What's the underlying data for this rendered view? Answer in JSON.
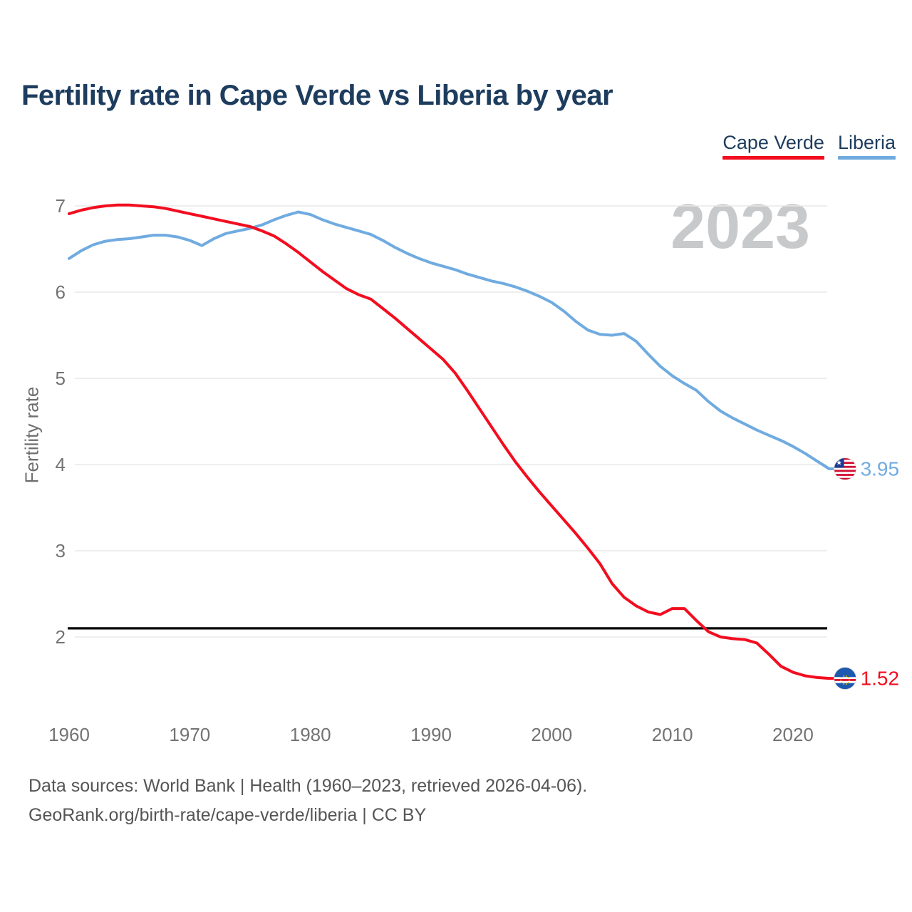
{
  "title": "Fertility rate in Cape Verde vs Liberia by year",
  "legend": {
    "items": [
      {
        "label": "Cape Verde",
        "color": "#f20d1f"
      },
      {
        "label": "Liberia",
        "color": "#70abe0"
      }
    ]
  },
  "watermark": "2023",
  "y_axis": {
    "label": "Fertility rate",
    "ticks": [
      7,
      6,
      5,
      4,
      3,
      2
    ]
  },
  "x_axis": {
    "ticks": [
      1960,
      1970,
      1980,
      1990,
      2000,
      2010,
      2020
    ]
  },
  "footer": {
    "line1": "Data sources: World Bank | Health (1960–2023, retrieved 2026-04-06).",
    "line2": "GeoRank.org/birth-rate/cape-verde/liberia | CC BY"
  },
  "chart_data": {
    "type": "line",
    "title": "Fertility rate in Cape Verde vs Liberia by year",
    "ylabel": "Fertility rate",
    "ylim": [
      2,
      7
    ],
    "xlim": [
      1960,
      2023
    ],
    "grid": "horizontal",
    "legend_position": "top-right",
    "x": [
      1960,
      1961,
      1962,
      1963,
      1964,
      1965,
      1966,
      1967,
      1968,
      1969,
      1970,
      1971,
      1972,
      1973,
      1974,
      1975,
      1976,
      1977,
      1978,
      1979,
      1980,
      1981,
      1982,
      1983,
      1984,
      1985,
      1986,
      1987,
      1988,
      1989,
      1990,
      1991,
      1992,
      1993,
      1994,
      1995,
      1996,
      1997,
      1998,
      1999,
      2000,
      2001,
      2002,
      2003,
      2004,
      2005,
      2006,
      2007,
      2008,
      2009,
      2010,
      2011,
      2012,
      2013,
      2014,
      2015,
      2016,
      2017,
      2018,
      2019,
      2020,
      2021,
      2022,
      2023
    ],
    "series": [
      {
        "name": "Cape Verde",
        "color": "#f20d1f",
        "end_label": "1.52",
        "flag": "cape-verde",
        "values": [
          6.91,
          6.95,
          6.98,
          7.0,
          7.01,
          7.01,
          7.0,
          6.99,
          6.97,
          6.94,
          6.91,
          6.88,
          6.85,
          6.82,
          6.79,
          6.76,
          6.71,
          6.65,
          6.56,
          6.46,
          6.35,
          6.24,
          6.14,
          6.04,
          5.97,
          5.92,
          5.81,
          5.7,
          5.58,
          5.46,
          5.34,
          5.22,
          5.06,
          4.86,
          4.65,
          4.44,
          4.23,
          4.03,
          3.85,
          3.68,
          3.52,
          3.36,
          3.2,
          3.03,
          2.85,
          2.62,
          2.46,
          2.36,
          2.29,
          2.26,
          2.33,
          2.33,
          2.19,
          2.06,
          2.0,
          1.98,
          1.97,
          1.93,
          1.8,
          1.66,
          1.59,
          1.55,
          1.53,
          1.52
        ]
      },
      {
        "name": "Liberia",
        "color": "#70abe0",
        "end_label": "3.95",
        "flag": "liberia",
        "values": [
          6.39,
          6.48,
          6.55,
          6.59,
          6.61,
          6.62,
          6.64,
          6.66,
          6.66,
          6.64,
          6.6,
          6.54,
          6.62,
          6.68,
          6.71,
          6.74,
          6.78,
          6.84,
          6.89,
          6.93,
          6.9,
          6.84,
          6.79,
          6.75,
          6.71,
          6.67,
          6.6,
          6.52,
          6.45,
          6.39,
          6.34,
          6.3,
          6.26,
          6.21,
          6.17,
          6.13,
          6.1,
          6.06,
          6.01,
          5.95,
          5.88,
          5.78,
          5.66,
          5.56,
          5.51,
          5.5,
          5.52,
          5.43,
          5.28,
          5.14,
          5.03,
          4.94,
          4.86,
          4.73,
          4.62,
          4.54,
          4.47,
          4.4,
          4.34,
          4.28,
          4.21,
          4.13,
          4.04,
          3.95
        ]
      }
    ],
    "reference_line": {
      "value": 2.1,
      "color": "#000000"
    }
  }
}
